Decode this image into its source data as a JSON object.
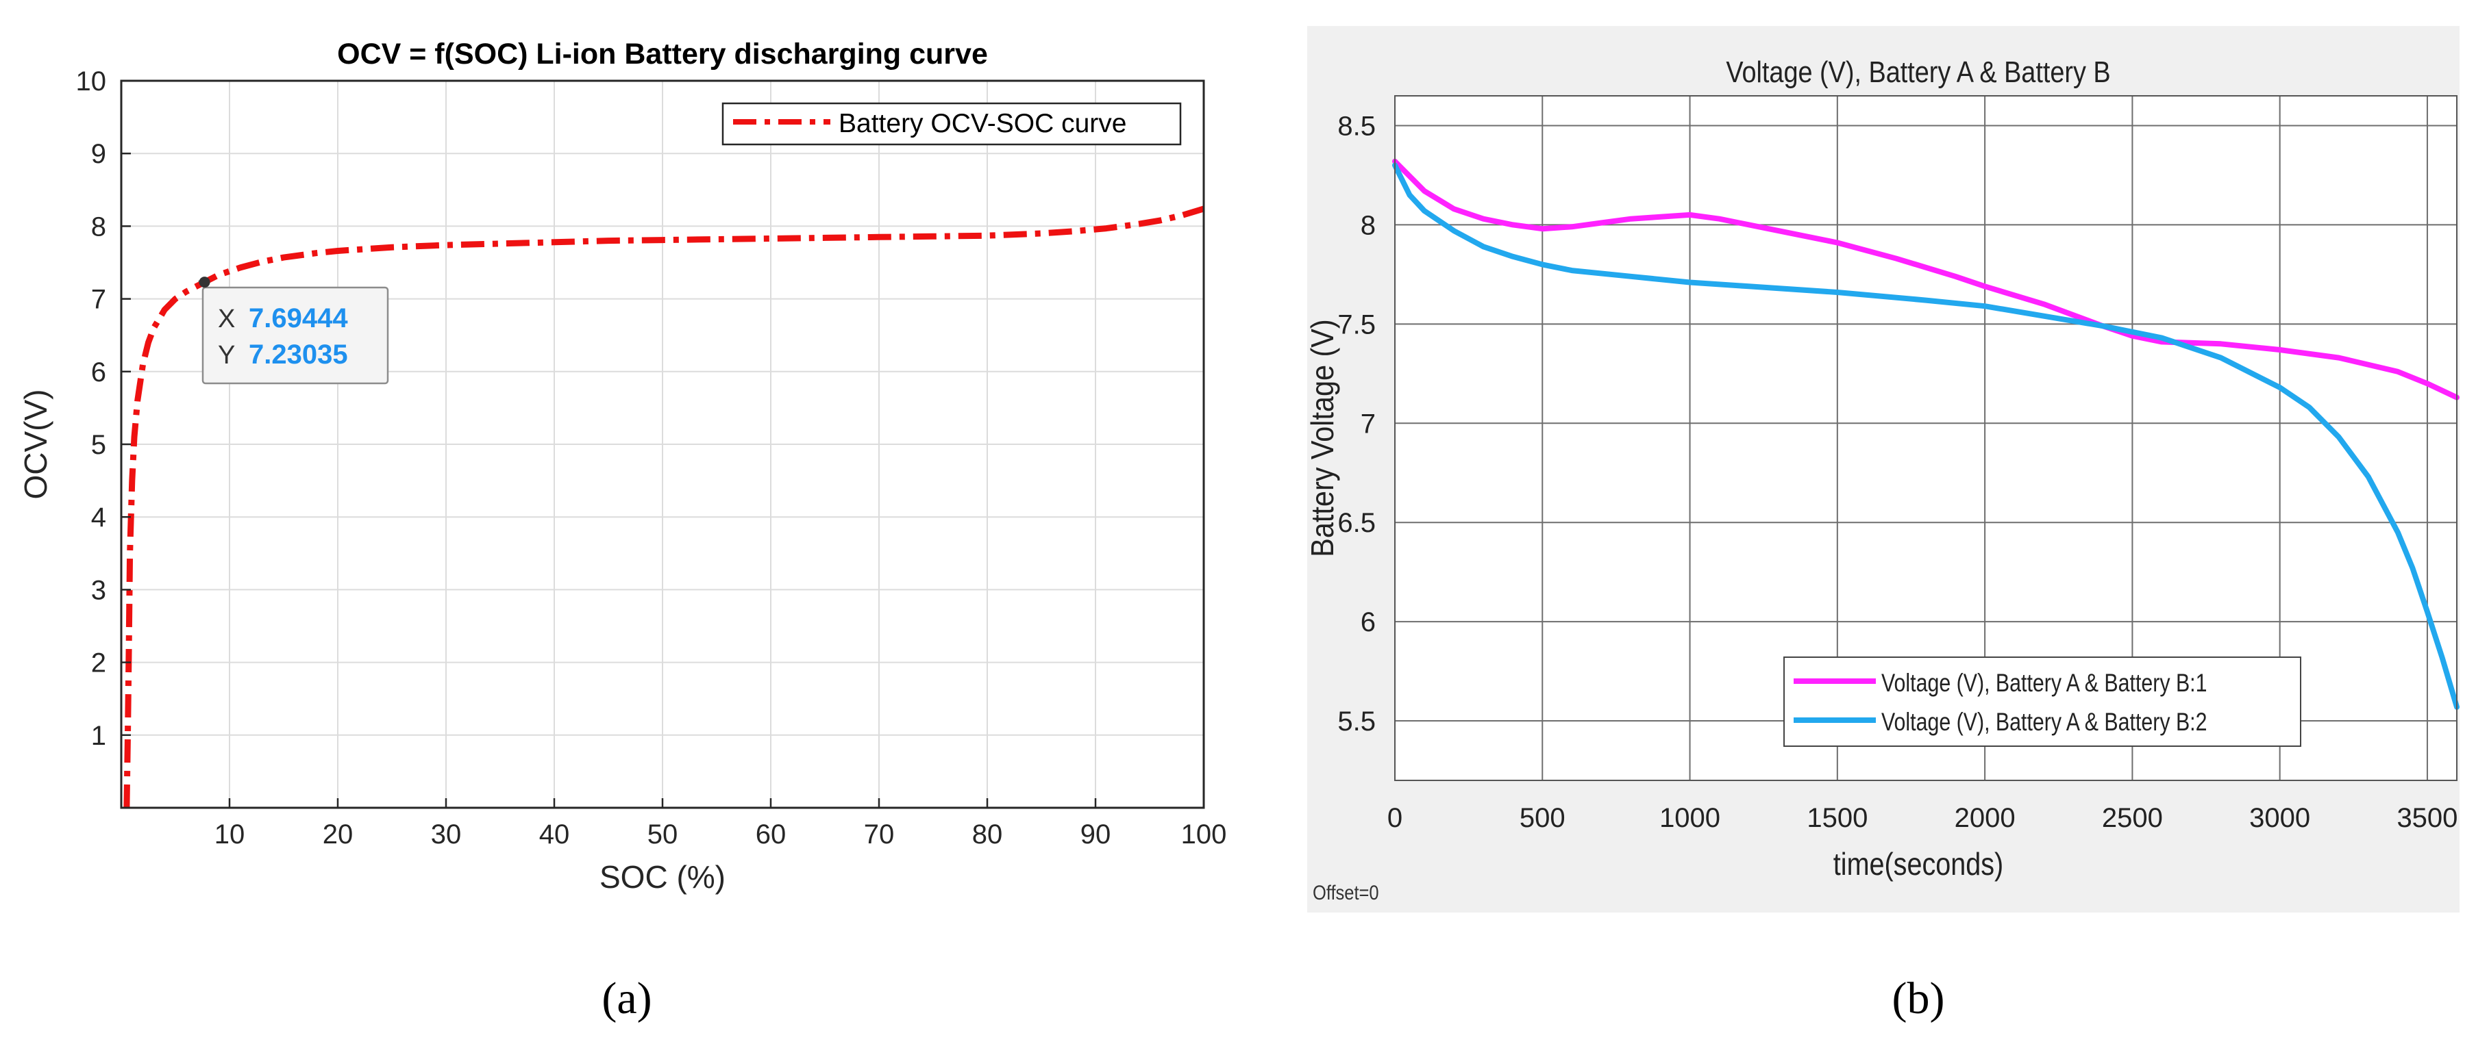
{
  "chart_data": [
    {
      "id": "a",
      "type": "line",
      "title": "OCV = f(SOC) Li-ion Battery  discharging curve",
      "xlabel": "SOC (%)",
      "ylabel": "OCV(V)",
      "xlim": [
        0,
        100
      ],
      "ylim": [
        0,
        10
      ],
      "x_ticks": [
        10,
        20,
        30,
        40,
        50,
        60,
        70,
        80,
        90,
        100
      ],
      "y_ticks": [
        1,
        2,
        3,
        4,
        5,
        6,
        7,
        8,
        9,
        10
      ],
      "grid": true,
      "legend_position": "top-right",
      "series": [
        {
          "name": "Battery OCV-SOC curve",
          "color": "#ee1111",
          "style": "dash-dot",
          "x": [
            0.5,
            0.6,
            0.7,
            0.8,
            1.0,
            1.2,
            1.5,
            2,
            2.5,
            3,
            4,
            5,
            6,
            7.69444,
            9,
            11,
            13,
            15,
            18,
            20,
            25,
            30,
            35,
            40,
            45,
            50,
            55,
            60,
            65,
            70,
            75,
            80,
            85,
            88,
            91,
            94,
            96,
            98,
            100
          ],
          "y": [
            0,
            1.0,
            2.2,
            3.5,
            4.5,
            5.1,
            5.6,
            6.1,
            6.4,
            6.6,
            6.85,
            7.0,
            7.1,
            7.23035,
            7.33,
            7.43,
            7.51,
            7.57,
            7.63,
            7.66,
            7.71,
            7.74,
            7.76,
            7.78,
            7.8,
            7.81,
            7.82,
            7.83,
            7.84,
            7.85,
            7.86,
            7.87,
            7.9,
            7.93,
            7.97,
            8.03,
            8.08,
            8.15,
            8.24
          ]
        }
      ],
      "datatip": {
        "x_label": "X",
        "x_value": "7.69444",
        "y_label": "Y",
        "y_value": "7.23035",
        "x": 7.69444,
        "y": 7.23035
      },
      "caption": "(a)"
    },
    {
      "id": "b",
      "type": "line",
      "title": "Voltage (V), Battery  A  & Battery  B",
      "xlabel": "time(seconds)",
      "ylabel": "Battery Voltage  (V)",
      "xlim": [
        0,
        3600
      ],
      "ylim": [
        5.2,
        8.65
      ],
      "x_ticks": [
        0,
        500,
        1000,
        1500,
        2000,
        2500,
        3000,
        3500
      ],
      "y_ticks": [
        5.5,
        6,
        6.5,
        7,
        7.5,
        8,
        8.5
      ],
      "y_tick_labels": [
        "5.5",
        "6",
        "6.5",
        "7",
        "7.5",
        "8",
        "8.5"
      ],
      "grid": true,
      "legend_position": "bottom-right",
      "footnote": "Offset=0",
      "series": [
        {
          "name": "Voltage (V), Battery  A  & Battery  B:1",
          "color": "#ff22ff",
          "x": [
            0,
            100,
            200,
            300,
            400,
            500,
            600,
            700,
            800,
            900,
            1000,
            1100,
            1300,
            1500,
            1700,
            1900,
            2000,
            2200,
            2400,
            2500,
            2600,
            2800,
            3000,
            3200,
            3400,
            3500,
            3600
          ],
          "y": [
            8.32,
            8.17,
            8.08,
            8.03,
            8.0,
            7.98,
            7.99,
            8.01,
            8.03,
            8.04,
            8.05,
            8.03,
            7.97,
            7.91,
            7.83,
            7.74,
            7.69,
            7.6,
            7.49,
            7.44,
            7.41,
            7.4,
            7.37,
            7.33,
            7.26,
            7.2,
            7.13
          ]
        },
        {
          "name": "Voltage (V), Battery  A  & Battery  B:2",
          "color": "#22a8ee",
          "x": [
            0,
            50,
            100,
            200,
            300,
            400,
            500,
            600,
            800,
            1000,
            1200,
            1500,
            1800,
            2000,
            2200,
            2400,
            2600,
            2800,
            3000,
            3100,
            3200,
            3300,
            3400,
            3450,
            3500,
            3550,
            3600
          ],
          "y": [
            8.3,
            8.15,
            8.07,
            7.97,
            7.89,
            7.84,
            7.8,
            7.77,
            7.74,
            7.71,
            7.69,
            7.66,
            7.62,
            7.59,
            7.54,
            7.49,
            7.43,
            7.33,
            7.18,
            7.08,
            6.93,
            6.73,
            6.45,
            6.27,
            6.05,
            5.82,
            5.57
          ]
        }
      ],
      "caption": "(b)"
    }
  ]
}
